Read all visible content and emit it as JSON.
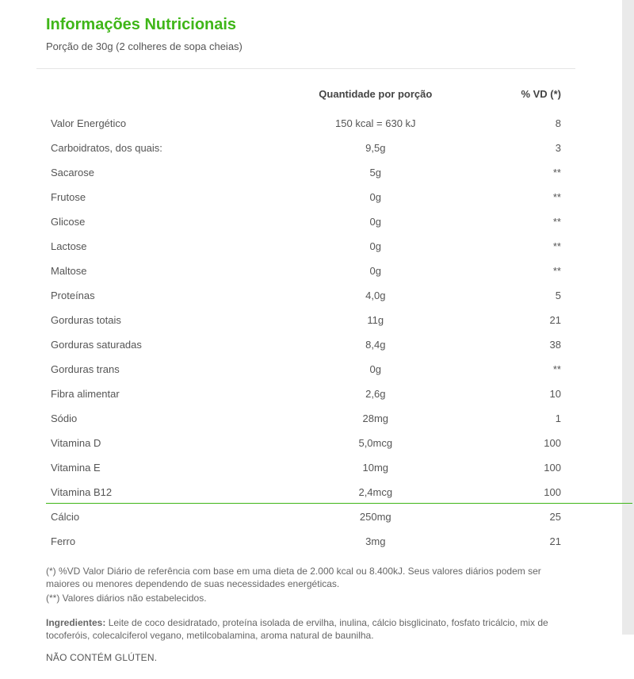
{
  "title": "Informações Nutricionais",
  "title_color": "#3fb618",
  "portion": "Porção de 30g (2 colheres de sopa cheias)",
  "headers": {
    "col1": "",
    "col2": "Quantidade por porção",
    "col3": "% VD (*)"
  },
  "rows": [
    {
      "name": "Valor Energético",
      "qty": "150 kcal  = 630 kJ",
      "vd": "8"
    },
    {
      "name": "Carboidratos, dos quais:",
      "qty": "9,5g",
      "vd": "3"
    },
    {
      "name": "Sacarose",
      "qty": "5g",
      "vd": "**"
    },
    {
      "name": "Frutose",
      "qty": "0g",
      "vd": "**"
    },
    {
      "name": "Glicose",
      "qty": "0g",
      "vd": "**"
    },
    {
      "name": "Lactose",
      "qty": "0g",
      "vd": "**"
    },
    {
      "name": "Maltose",
      "qty": "0g",
      "vd": "**"
    },
    {
      "name": "Proteínas",
      "qty": "4,0g",
      "vd": "5"
    },
    {
      "name": "Gorduras totais",
      "qty": "11g",
      "vd": "21"
    },
    {
      "name": "Gorduras saturadas",
      "qty": "8,4g",
      "vd": "38"
    },
    {
      "name": "Gorduras trans",
      "qty": "0g",
      "vd": "**"
    },
    {
      "name": "Fibra alimentar",
      "qty": "2,6g",
      "vd": "10"
    },
    {
      "name": "Sódio",
      "qty": "28mg",
      "vd": "1"
    },
    {
      "name": "Vitamina D",
      "qty": "5,0mcg",
      "vd": "100"
    },
    {
      "name": "Vitamina E",
      "qty": "10mg",
      "vd": "100"
    },
    {
      "name": "Vitamina B12",
      "qty": "2,4mcg",
      "vd": "100"
    },
    {
      "name": "Cálcio",
      "qty": "250mg",
      "vd": "25"
    },
    {
      "name": "Ferro",
      "qty": "3mg",
      "vd": "21"
    }
  ],
  "footnote1": "(*) %VD Valor Diário de referência com base em uma dieta de 2.000 kcal ou 8.400kJ. Seus valores diários podem ser maiores ou menores dependendo de suas necessidades energéticas.",
  "footnote2": "(**) Valores diários não estabelecidos.",
  "ingredients_label": "Ingredientes:",
  "ingredients_text": " Leite de coco desidratado, proteína isolada de ervilha, inulina, cálcio bisglicinato, fosfato tricálcio, mix de tocoferóis, colecalciferol vegano, metilcobalamina, aroma natural de baunilha.",
  "no_gluten": "NÃO CONTÉM GLÚTEN."
}
